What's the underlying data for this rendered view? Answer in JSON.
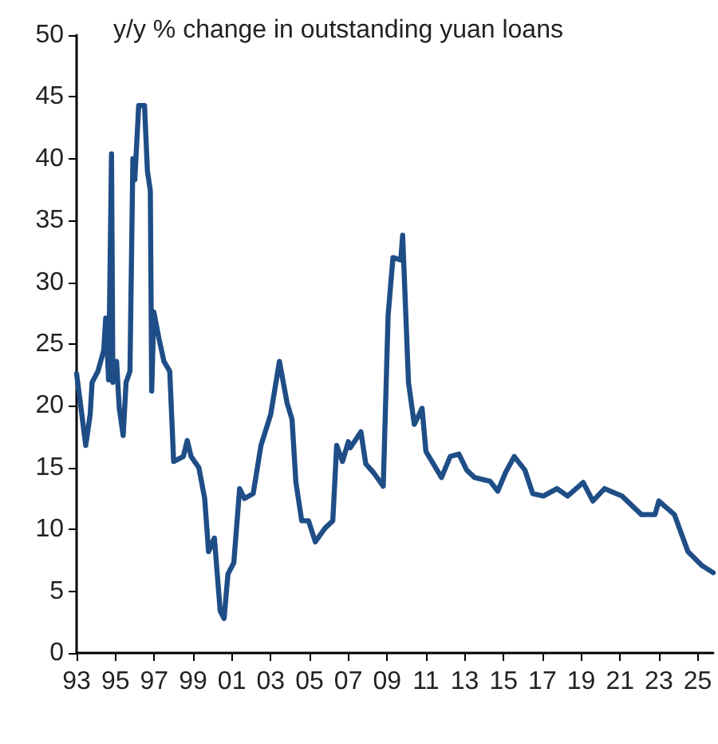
{
  "chart_data": {
    "type": "line",
    "title": "y/y % change in outstanding yuan loans",
    "series": [
      {
        "color": "#1f4e87",
        "x": [
          1993.0,
          1993.27,
          1993.47,
          1993.7,
          1993.8,
          1994.1,
          1994.4,
          1994.5,
          1994.65,
          1994.8,
          1994.87,
          1995.06,
          1995.2,
          1995.4,
          1995.55,
          1995.75,
          1995.9,
          1996.0,
          1996.2,
          1996.5,
          1996.65,
          1996.8,
          1996.87,
          1996.98,
          1997.25,
          1997.5,
          1997.8,
          1998.0,
          1998.5,
          1998.7,
          1998.9,
          1999.3,
          1999.6,
          1999.8,
          2000.1,
          2000.4,
          2000.6,
          2000.8,
          2001.1,
          2001.4,
          2001.65,
          2002.1,
          2002.5,
          2003.0,
          2003.45,
          2003.85,
          2004.1,
          2004.3,
          2004.6,
          2004.95,
          2005.3,
          2005.8,
          2006.2,
          2006.4,
          2006.7,
          2007.0,
          2007.1,
          2007.65,
          2007.9,
          2008.3,
          2008.8,
          2009.05,
          2009.3,
          2009.7,
          2009.8,
          2010.1,
          2010.4,
          2010.8,
          2011.0,
          2011.8,
          2012.25,
          2012.7,
          2013.1,
          2013.5,
          2014.3,
          2014.7,
          2015.1,
          2015.55,
          2016.1,
          2016.5,
          2017.05,
          2017.75,
          2018.3,
          2019.1,
          2019.6,
          2020.2,
          2021.1,
          2022.1,
          2022.8,
          2023.0,
          2023.8,
          2024.5,
          2025.2,
          2025.8
        ],
        "values": [
          22.6,
          19.3,
          16.8,
          19.3,
          21.9,
          22.8,
          24.5,
          27.1,
          22.1,
          40.4,
          21.9,
          23.6,
          19.8,
          17.6,
          21.9,
          22.8,
          40,
          38.3,
          44.3,
          44.3,
          39,
          37.4,
          21.2,
          27.6,
          25.4,
          23.6,
          22.8,
          15.5,
          15.9,
          17.2,
          15.9,
          15,
          12.5,
          8.2,
          9.3,
          3.4,
          2.8,
          6.4,
          7.3,
          13.3,
          12.5,
          12.9,
          16.8,
          19.3,
          23.6,
          20.2,
          18.9,
          13.8,
          10.7,
          10.7,
          9.0,
          10.1,
          10.7,
          16.8,
          15.5,
          17.1,
          16.6,
          17.9,
          15.3,
          14.6,
          13.5,
          27.3,
          32.0,
          31.8,
          33.8,
          21.9,
          18.5,
          19.8,
          16.3,
          14.2,
          15.9,
          16.1,
          14.8,
          14.2,
          13.9,
          13.1,
          14.6,
          15.9,
          14.8,
          12.9,
          12.7,
          13.3,
          12.7,
          13.8,
          12.3,
          13.3,
          12.7,
          11.2,
          11.2,
          12.3,
          11.2,
          8.2,
          7.1,
          6.5
        ]
      }
    ],
    "xlim": [
      1993,
      2025.8
    ],
    "xticks": [
      {
        "value": 1993,
        "label": "93"
      },
      {
        "value": 1995,
        "label": "95"
      },
      {
        "value": 1997,
        "label": "97"
      },
      {
        "value": 1999,
        "label": "99"
      },
      {
        "value": 2001,
        "label": "01"
      },
      {
        "value": 2003,
        "label": "03"
      },
      {
        "value": 2005,
        "label": "05"
      },
      {
        "value": 2007,
        "label": "07"
      },
      {
        "value": 2009,
        "label": "09"
      },
      {
        "value": 2011,
        "label": "11"
      },
      {
        "value": 2013,
        "label": "13"
      },
      {
        "value": 2015,
        "label": "15"
      },
      {
        "value": 2017,
        "label": "17"
      },
      {
        "value": 2019,
        "label": "19"
      },
      {
        "value": 2021,
        "label": "21"
      },
      {
        "value": 2023,
        "label": "23"
      },
      {
        "value": 2025,
        "label": "25"
      }
    ],
    "ylim": [
      0,
      50
    ],
    "yticks": [
      0,
      5,
      10,
      15,
      20,
      25,
      30,
      35,
      40,
      45,
      50
    ],
    "grid": false,
    "marker": "none",
    "line_style": "solid"
  }
}
